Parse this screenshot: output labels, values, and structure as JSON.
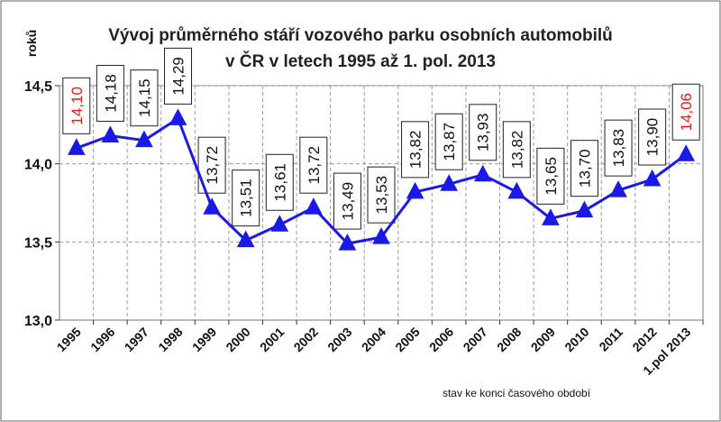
{
  "chart_data": {
    "type": "line",
    "title_line1": "Vývoj průměrného stáří vozového parku osobních automobilů",
    "title_line2": "v ČR v letech 1995 až 1. pol.  2013",
    "ylabel": "roků",
    "note": "stav ke konci časového období",
    "ylim": [
      13.0,
      14.5
    ],
    "yticks": [
      "13,0",
      "13,5",
      "14,0",
      "14,5"
    ],
    "ytick_values": [
      13.0,
      13.5,
      14.0,
      14.5
    ],
    "grid": true,
    "categories": [
      "1995",
      "1996",
      "1997",
      "1998",
      "1999",
      "2000",
      "2001",
      "2002",
      "2003",
      "2004",
      "2005",
      "2006",
      "2007",
      "2008",
      "2009",
      "2010",
      "2011",
      "2012",
      "1.pol 2013"
    ],
    "values": [
      14.1,
      14.18,
      14.15,
      14.29,
      13.72,
      13.51,
      13.61,
      13.72,
      13.49,
      13.53,
      13.82,
      13.87,
      13.93,
      13.82,
      13.65,
      13.7,
      13.83,
      13.9,
      14.06
    ],
    "data_labels": [
      "14,10",
      "14,18",
      "14,15",
      "14,29",
      "13,72",
      "13,51",
      "13,61",
      "13,72",
      "13,49",
      "13,53",
      "13,82",
      "13,87",
      "13,93",
      "13,82",
      "13,65",
      "13,70",
      "13,83",
      "13,90",
      "14,06"
    ],
    "highlighted_points": [
      0,
      18
    ],
    "colors": {
      "line": "#1a1ae6",
      "marker": "#1a1ae6",
      "label_normal": "#111111",
      "label_highlight": "#e41a1a",
      "grid": "#9a9a9a",
      "frame": "#666666"
    }
  }
}
